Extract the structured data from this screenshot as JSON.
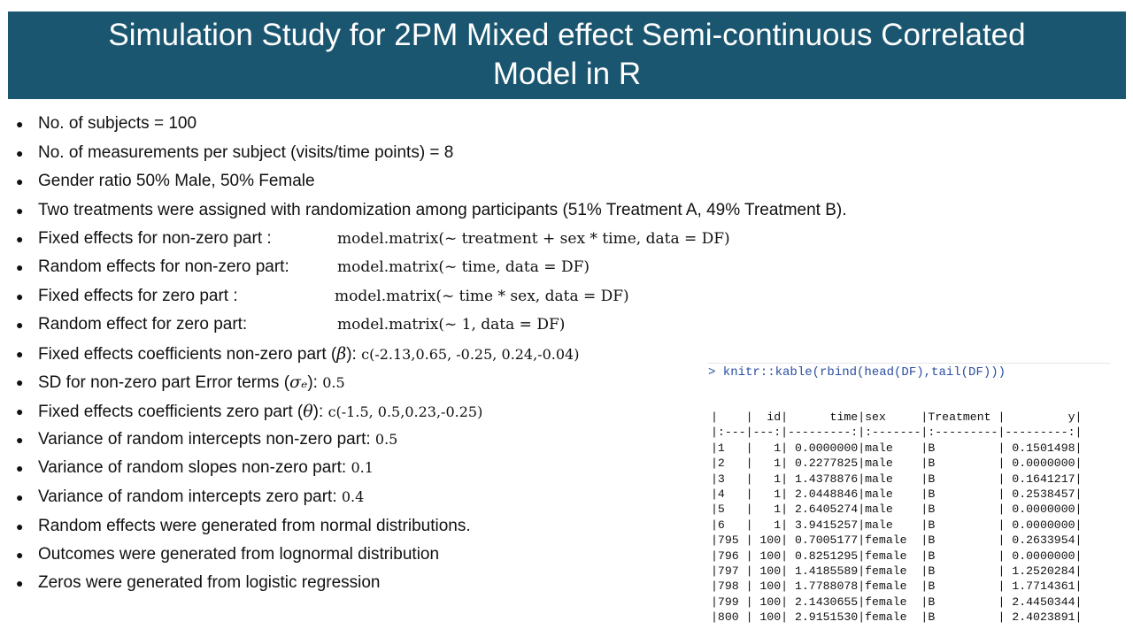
{
  "title": {
    "line1": "Simulation Study for 2PM Mixed effect Semi-continuous Correlated",
    "line2": "Model in R"
  },
  "bullets": [
    {
      "text": "No. of subjects = 100"
    },
    {
      "text": "No. of measurements per subject (visits/time points) = 8"
    },
    {
      "text": "Gender ratio 50% Male, 50% Female"
    },
    {
      "text": "Two treatments were assigned with randomization among participants (51% Treatment A, 49%  Treatment B)."
    },
    {
      "text": "Fixed effects for non-zero part :",
      "formula": "model.matrix(~ treatment + sex * time, data = DF)"
    },
    {
      "text": "Random effects for non-zero part:",
      "formula": "model.matrix(~ time, data = DF)"
    },
    {
      "text": "Fixed effects for zero part :",
      "formula": "model.matrix(~ time * sex, data = DF)"
    },
    {
      "text": "Random effect for zero part:",
      "formula": "model.matrix(~ 1, data = DF)"
    },
    {
      "text": "Fixed effects coefficients non-zero part (",
      "symbol": "β",
      "close": "):",
      "value": "c(-2.13,0.65, -0.25, 0.24,-0.04)"
    },
    {
      "text": "SD for non-zero part Error terms (",
      "symbol": "σₑ",
      "close": "):",
      "value": "0.5"
    },
    {
      "text": "Fixed effects coefficients zero part (",
      "symbol": "θ",
      "close": "):",
      "value": "c(-1.5, 0.5,0.23,-0.25)"
    },
    {
      "text": "Variance of random intercepts non-zero part:",
      "value": "0.5"
    },
    {
      "text": "Variance of random slopes non-zero part:",
      "value": "0.1"
    },
    {
      "text": "Variance of random intercepts zero part:",
      "value": "0.4"
    },
    {
      "text": "Random effects were generated from normal distributions."
    },
    {
      "text": "Outcomes were generated from lognormal distribution"
    },
    {
      "text": "Zeros were generated from logistic regression"
    }
  ],
  "console": {
    "command": "> knitr::kable(rbind(head(DF),tail(DF)))",
    "header": "|    |  id|      time|sex     |Treatment |         y|",
    "separator": "|:---|---:|---------:|:-------|:---------|---------:|",
    "rows": [
      "|1   |   1| 0.0000000|male    |B         | 0.1501498|",
      "|2   |   1| 0.2277825|male    |B         | 0.0000000|",
      "|3   |   1| 1.4378876|male    |B         | 0.1641217|",
      "|4   |   1| 2.0448846|male    |B         | 0.2538457|",
      "|5   |   1| 2.6405274|male    |B         | 0.0000000|",
      "|6   |   1| 3.9415257|male    |B         | 0.0000000|",
      "|795 | 100| 0.7005177|female  |B         | 0.2633954|",
      "|796 | 100| 0.8251295|female  |B         | 0.0000000|",
      "|797 | 100| 1.4185589|female  |B         | 1.2520284|",
      "|798 | 100| 1.7788078|female  |B         | 1.7714361|",
      "|799 | 100| 2.1430655|female  |B         | 2.4450344|",
      "|800 | 100| 2.9151530|female  |B         | 2.4023891|"
    ]
  }
}
